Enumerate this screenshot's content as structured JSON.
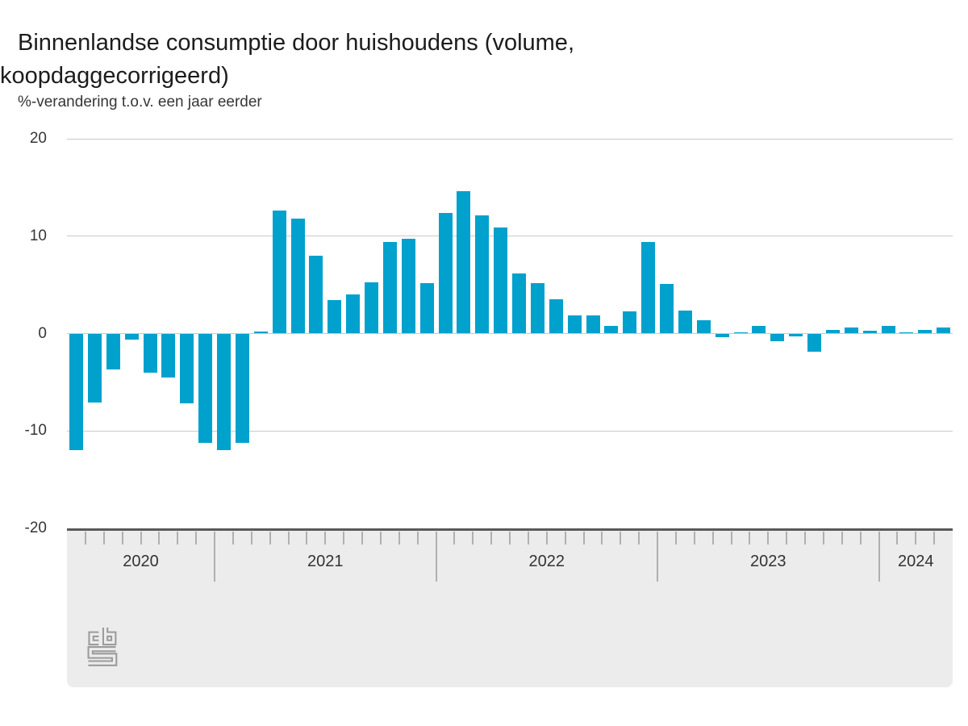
{
  "title": {
    "line1": "Binnenlandse consumptie door huishoudens (volume,",
    "line2": "koopdaggecorrigeerd)"
  },
  "subtitle": "%-verandering t.o.v. een jaar eerder",
  "y_axis": {
    "tick_values": [
      20,
      10,
      0,
      -10,
      -20
    ],
    "tick_labels": [
      "20",
      "10",
      "0",
      "-10",
      "-20"
    ]
  },
  "x_axis": {
    "years": [
      {
        "label": "2020",
        "months": 8
      },
      {
        "label": "2021",
        "months": 12
      },
      {
        "label": "2022",
        "months": 12
      },
      {
        "label": "2023",
        "months": 12
      },
      {
        "label": "2024",
        "months": 4
      }
    ]
  },
  "colors": {
    "bar": "#00a1cd",
    "gridline": "#c9c9c9",
    "axis_line": "#595959",
    "band": "#ececec",
    "tick": "#b0b0b0",
    "logo": "#9b9b9b"
  },
  "logo": {
    "name": "cbs-logo"
  },
  "chart_data": {
    "type": "bar",
    "title": "Binnenlandse consumptie door huishoudens (volume, koopdaggecorrigeerd)",
    "ylabel": "%-verandering t.o.v. een jaar eerder",
    "ylim": [
      -20,
      20
    ],
    "grid": true,
    "x": [
      "2020-05",
      "2020-06",
      "2020-07",
      "2020-08",
      "2020-09",
      "2020-10",
      "2020-11",
      "2020-12",
      "2021-01",
      "2021-02",
      "2021-03",
      "2021-04",
      "2021-05",
      "2021-06",
      "2021-07",
      "2021-08",
      "2021-09",
      "2021-10",
      "2021-11",
      "2021-12",
      "2022-01",
      "2022-02",
      "2022-03",
      "2022-04",
      "2022-05",
      "2022-06",
      "2022-07",
      "2022-08",
      "2022-09",
      "2022-10",
      "2022-11",
      "2022-12",
      "2023-01",
      "2023-02",
      "2023-03",
      "2023-04",
      "2023-05",
      "2023-06",
      "2023-07",
      "2023-08",
      "2023-09",
      "2023-10",
      "2023-11",
      "2023-12",
      "2024-01",
      "2024-02",
      "2024-03",
      "2024-04"
    ],
    "values": [
      -12.0,
      -7.1,
      -3.7,
      -0.6,
      -4.0,
      -4.5,
      -7.2,
      -11.2,
      -12.0,
      -11.2,
      0.2,
      12.6,
      11.8,
      8.0,
      3.4,
      4.0,
      5.3,
      9.4,
      9.7,
      5.2,
      12.4,
      14.6,
      12.1,
      10.9,
      6.2,
      5.2,
      3.5,
      1.9,
      1.9,
      0.8,
      2.3,
      9.4,
      5.1,
      2.4,
      1.4,
      -0.4,
      0.1,
      0.8,
      -0.8,
      -0.3,
      -1.9,
      0.4,
      0.6,
      0.3,
      0.8,
      0.1,
      0.4,
      0.6
    ]
  }
}
